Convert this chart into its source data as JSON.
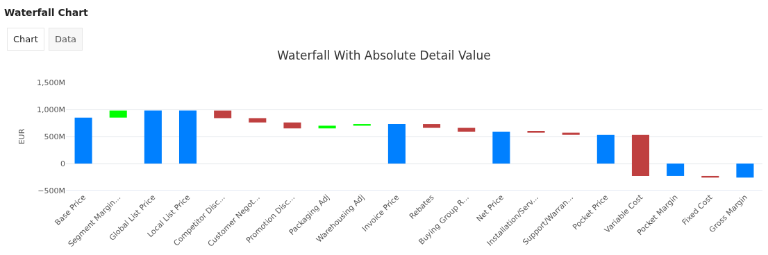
{
  "chart_data": {
    "type": "bar",
    "title": "Waterfall With Absolute Detail Value",
    "ylabel": "EUR",
    "annotations": [
      "Waterfall Chart",
      "Chart",
      "Data"
    ],
    "categories": [
      "Base Price",
      "Segment Margin...",
      "Global List Price",
      "Local List Price",
      "Competitor Disc...",
      "Customer Negot...",
      "Promotion Disc...",
      "Packaging Adj",
      "Warehousing Adj",
      "Invoice Price",
      "Rebates",
      "Buying Group R...",
      "Net Price",
      "Installation/Serv...",
      "Support/Warran...",
      "Pocket Price",
      "Variable Cost",
      "Pocket Margin",
      "Fixed Cost",
      "Gross Margin"
    ],
    "values": [
      850,
      130,
      980,
      980,
      -140,
      -80,
      -110,
      50,
      30,
      730,
      -70,
      -70,
      590,
      -20,
      -40,
      530,
      -760,
      -230,
      -30,
      -260
    ],
    "base": [
      0,
      850,
      0,
      0,
      980,
      840,
      760,
      650,
      700,
      0,
      730,
      660,
      0,
      590,
      570,
      0,
      530,
      0,
      -230,
      0
    ],
    "colors": [
      "#0080ff",
      "#00ff00",
      "#0080ff",
      "#0080ff",
      "#bf4040",
      "#bf4040",
      "#bf4040",
      "#00ff00",
      "#00ff00",
      "#0080ff",
      "#bf4040",
      "#bf4040",
      "#0080ff",
      "#bf4040",
      "#bf4040",
      "#0080ff",
      "#bf4040",
      "#0080ff",
      "#bf4040",
      "#0080ff"
    ],
    "ylim": [
      -500,
      1500
    ],
    "yticks": [
      {
        "value": -500,
        "label": "−500M"
      },
      {
        "value": 0,
        "label": "0"
      },
      {
        "value": 500,
        "label": "500M"
      },
      {
        "value": 1000,
        "label": "1,000M"
      },
      {
        "value": 1500,
        "label": "1,500M"
      }
    ],
    "grid": "y"
  }
}
